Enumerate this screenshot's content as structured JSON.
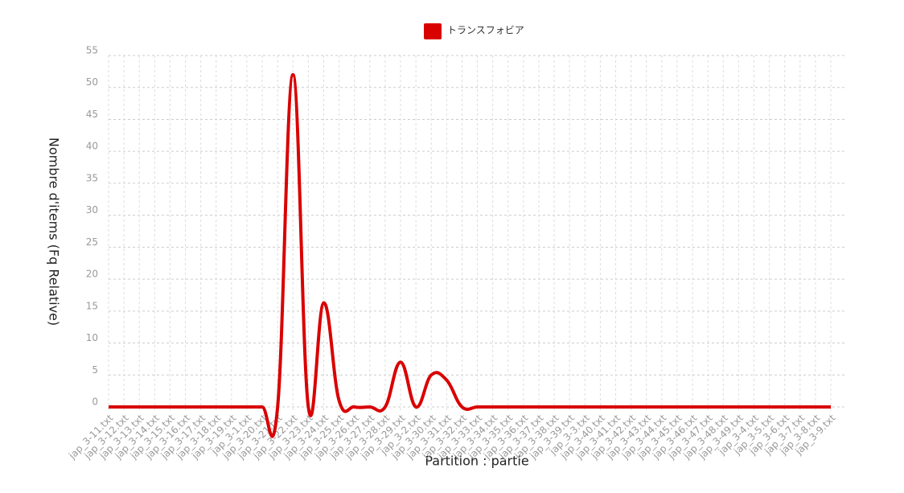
{
  "chart_data": {
    "type": "line",
    "x_label": "Partition : partie",
    "y_label": "Nombre d'items (Fq Relative)",
    "categories": [
      "jap_3-11.txt",
      "jap_3-12.txt",
      "jap_3-13.txt",
      "jap_3-14.txt",
      "jap_3-15.txt",
      "jap_3-16.txt",
      "jap_3-17.txt",
      "jap_3-18.txt",
      "jap_3-19.txt",
      "jap_3-1.txt",
      "jap_3-20.txt",
      "jap_3-21.txt",
      "jap_3-22.txt",
      "jap_3-23.txt",
      "jap_3-24.txt",
      "jap_3-25.txt",
      "jap_3-26.txt",
      "jap_3-27.txt",
      "jap_3-28.txt",
      "jap_3-29.txt",
      "jap_3-2.txt",
      "jap_3-30.txt",
      "jap_3-31.txt",
      "jap_3-32.txt",
      "jap_3-33.txt",
      "jap_3-34.txt",
      "jap_3-35.txt",
      "jap_3-36.txt",
      "jap_3-37.txt",
      "jap_3-38.txt",
      "jap_3-39.txt",
      "jap_3-3.txt",
      "jap_3-40.txt",
      "jap_3-41.txt",
      "jap_3-42.txt",
      "jap_3-43.txt",
      "jap_3-44.txt",
      "jap_3-45.txt",
      "jap_3-46.txt",
      "jap_3-47.txt",
      "jap_3-48.txt",
      "jap_3-49.txt",
      "jap_3-4.txt",
      "jap_3-5.txt",
      "jap_3-6.txt",
      "jap_3-7.txt",
      "jap_3-8.txt",
      "jap_3-9.txt"
    ],
    "series": [
      {
        "name": "トランスフォビア",
        "color": "#d90000",
        "values": [
          0,
          0,
          0,
          0,
          0,
          0,
          0,
          0,
          0,
          0,
          0,
          0,
          52,
          0,
          16.3,
          1,
          0,
          0,
          0,
          7,
          0,
          5,
          4.2,
          0,
          0,
          0,
          0,
          0,
          0,
          0,
          0,
          0,
          0,
          0,
          0,
          0,
          0,
          0,
          0,
          0,
          0,
          0,
          0,
          0,
          0,
          0,
          0,
          0
        ]
      }
    ],
    "ylim": [
      0,
      55
    ],
    "yticks": [
      0,
      5,
      10,
      15,
      20,
      25,
      30,
      35,
      40,
      45,
      50,
      55
    ],
    "grid": true
  }
}
